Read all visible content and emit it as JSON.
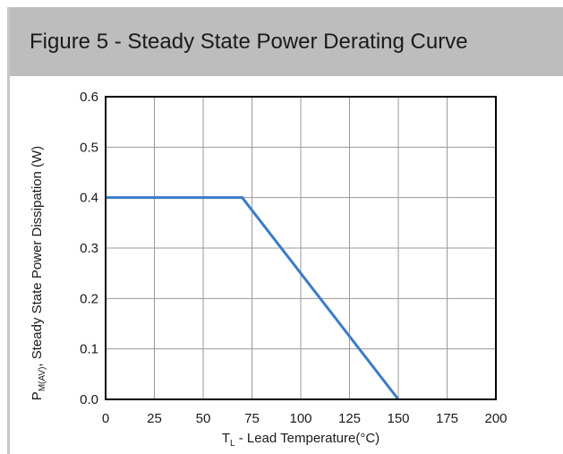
{
  "figure": {
    "title": "Figure 5 - Steady State Power Derating Curve"
  },
  "chart_data": {
    "type": "line",
    "title": "Figure 5 - Steady State Power Derating Curve",
    "xlabel": {
      "main": "T",
      "subscript": "L",
      "rest": " - Lead Temperature(°C)"
    },
    "ylabel": {
      "main": "P",
      "subscript": "M(AV)",
      "rest": ", Steady State Power Dissipation (W)"
    },
    "xlim": [
      0,
      200
    ],
    "ylim": [
      0,
      0.6
    ],
    "x_ticks": [
      "0",
      "25",
      "50",
      "75",
      "100",
      "125",
      "150",
      "175",
      "200"
    ],
    "y_ticks": [
      "0.0",
      "0.1",
      "0.2",
      "0.3",
      "0.4",
      "0.5",
      "0.6"
    ],
    "grid": true,
    "series": [
      {
        "x": [
          0,
          70,
          150
        ],
        "y": [
          0.4,
          0.4,
          0
        ],
        "color": "#3a7bc8"
      }
    ]
  }
}
